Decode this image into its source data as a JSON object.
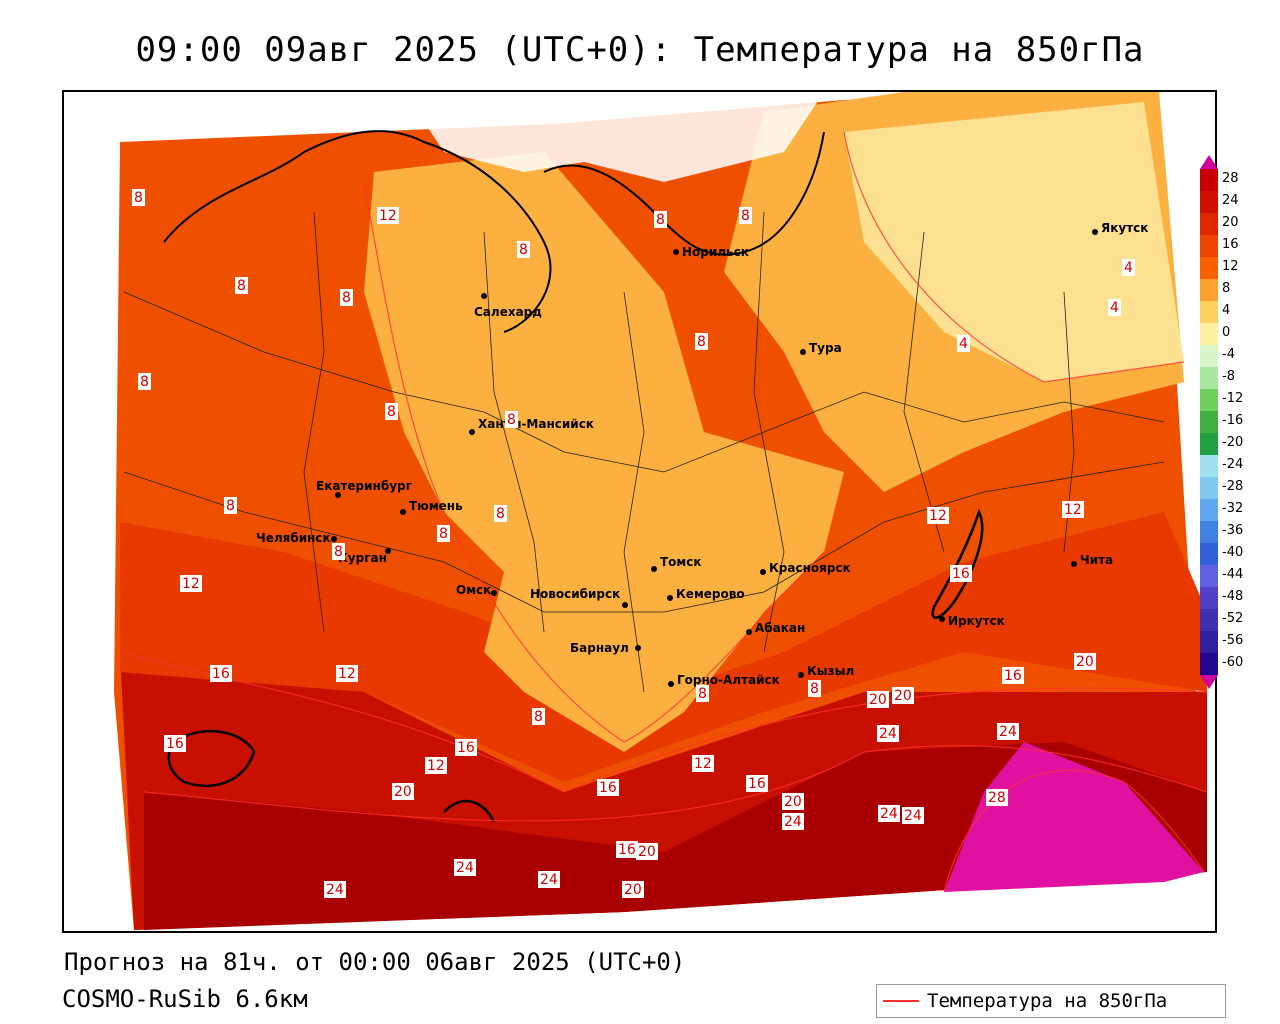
{
  "title": "09:00 09авг 2025 (UTC+0): Температура на 850гПа",
  "footer": {
    "forecast": "Прогноз на 81ч. от 00:00 06авг 2025 (UTC+0)",
    "model": "COSMO-RuSib 6.6км"
  },
  "legend": {
    "label": "Температура на 850гПа",
    "line_color": "#ff3030"
  },
  "colorbar": {
    "labels": [
      "28",
      "24",
      "20",
      "16",
      "12",
      "8",
      "4",
      "0",
      "-4",
      "-8",
      "-12",
      "-16",
      "-20",
      "-24",
      "-28",
      "-32",
      "-36",
      "-40",
      "-44",
      "-48",
      "-52",
      "-56",
      "-60"
    ],
    "colors": [
      "#c80000",
      "#d21000",
      "#e02800",
      "#ee4400",
      "#f86000",
      "#fca030",
      "#fdd060",
      "#fdf0a0",
      "#d8f5c8",
      "#a8e8a0",
      "#70d060",
      "#40b040",
      "#20a040",
      "#a0e0f0",
      "#80c8f0",
      "#60a8f0",
      "#4080e0",
      "#3060d8",
      "#6060e0",
      "#5040c8",
      "#4030b0",
      "#3020a0",
      "#200890"
    ],
    "top_arrow_color": "#d000a0",
    "bottom_arrow_color": "#d000a0"
  },
  "cities": [
    {
      "name": "Норильск"
    },
    {
      "name": "Якутск"
    },
    {
      "name": "Салехард"
    },
    {
      "name": "Тура"
    },
    {
      "name": "Ханты-Мансийск"
    },
    {
      "name": "Екатеринбург"
    },
    {
      "name": "Тюмень"
    },
    {
      "name": "Челябинск"
    },
    {
      "name": "Курган"
    },
    {
      "name": "Омск"
    },
    {
      "name": "Новосибирск"
    },
    {
      "name": "Томск"
    },
    {
      "name": "Кемерово"
    },
    {
      "name": "Красноярск"
    },
    {
      "name": "Барнаул"
    },
    {
      "name": "Абакан"
    },
    {
      "name": "Иркутск"
    },
    {
      "name": "Чита"
    },
    {
      "name": "Кызыл"
    },
    {
      "name": "Горно-Алтайск"
    }
  ],
  "isotherm_labels": [
    "8",
    "12",
    "8",
    "8",
    "8",
    "8",
    "8",
    "8",
    "4",
    "4",
    "4",
    "8",
    "8",
    "8",
    "8",
    "8",
    "8",
    "8",
    "12",
    "12",
    "16",
    "16",
    "12",
    "16",
    "20",
    "16",
    "20",
    "12",
    "12",
    "16",
    "20",
    "20",
    "24",
    "24",
    "28",
    "24",
    "24",
    "20",
    "24",
    "24",
    "20",
    "16",
    "20",
    "24",
    "24",
    "16",
    "8",
    "8",
    "8",
    "12",
    "16"
  ]
}
